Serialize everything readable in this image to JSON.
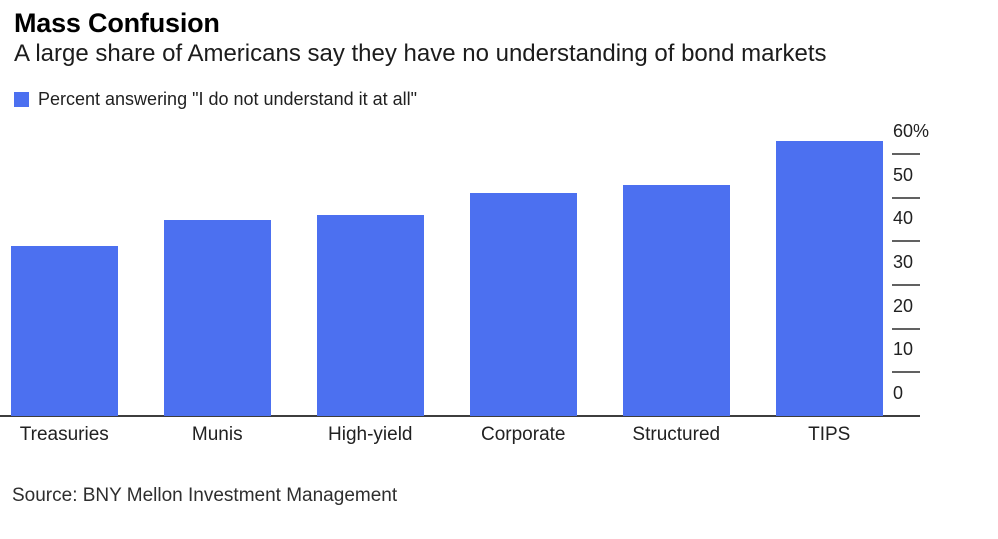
{
  "header": {
    "title": "Mass Confusion",
    "subtitle": "A large share of Americans say they have no understanding of bond markets"
  },
  "legend": {
    "label": "Percent answering \"I do not understand it at all\"",
    "swatch_color": "#4C70F0"
  },
  "chart_data": {
    "type": "bar",
    "title": "Mass Confusion",
    "subtitle": "A large share of Americans say they have no understanding of bond markets",
    "series_label": "Percent answering \"I do not understand it at all\"",
    "categories": [
      "Treasuries",
      "Munis",
      "High-yield",
      "Corporate",
      "Structured",
      "TIPS"
    ],
    "values": [
      39,
      45,
      46,
      51,
      53,
      63
    ],
    "xlabel": "",
    "ylabel": "Percent",
    "ylim": [
      0,
      60
    ],
    "y_ticks": [
      {
        "value": 0,
        "label": "0"
      },
      {
        "value": 10,
        "label": "10"
      },
      {
        "value": 20,
        "label": "20"
      },
      {
        "value": 30,
        "label": "30"
      },
      {
        "value": 40,
        "label": "40"
      },
      {
        "value": 50,
        "label": "50"
      },
      {
        "value": 60,
        "label": "60%"
      }
    ],
    "axis_side": "right",
    "grid": false,
    "bar_color": "#4C70F0",
    "baseline_color": "#3d3d3d",
    "tick_color": "#616161",
    "legend_position": "top-left"
  },
  "source": {
    "text": "Source: BNY Mellon Investment Management"
  }
}
